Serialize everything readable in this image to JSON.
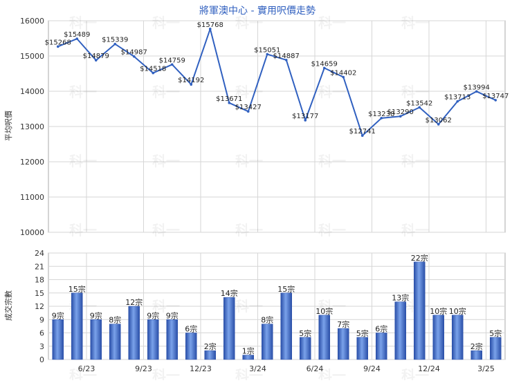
{
  "chart_data": [
    {
      "type": "line",
      "title": "將軍澳中心 - 實用呎價走勢",
      "ylabel": "平均呎價",
      "ylim": [
        10000,
        16000
      ],
      "yticks": [
        10000,
        11000,
        12000,
        13000,
        14000,
        15000,
        16000
      ],
      "xtick_labels": [
        "6/23",
        "9/23",
        "12/23",
        "3/24",
        "6/24",
        "9/24",
        "12/24",
        "3/25"
      ],
      "grid": true,
      "line_color": "#3060c0",
      "values": [
        15268,
        15489,
        14879,
        15339,
        14987,
        14518,
        14759,
        14192,
        15768,
        13671,
        13427,
        15051,
        14887,
        13177,
        14659,
        14402,
        12741,
        13238,
        13290,
        13542,
        13062,
        13713,
        13994,
        13747
      ],
      "data_labels": [
        "$15268",
        "$15489",
        "$14879",
        "$15339",
        "$14987",
        "$14518",
        "$14759",
        "$14192",
        "$15768",
        "$13671",
        "$13427",
        "$15051",
        "$14887",
        "$13177",
        "$14659",
        "$14402",
        "$12741",
        "$13238",
        "$13290",
        "$13542",
        "$13062",
        "$13713",
        "$13994",
        "$13747"
      ]
    },
    {
      "type": "bar",
      "ylabel": "成交宗數",
      "ylim": [
        0,
        24
      ],
      "yticks": [
        0,
        3,
        6,
        9,
        12,
        15,
        18,
        21,
        24
      ],
      "xtick_labels": [
        "6/23",
        "9/23",
        "12/23",
        "3/24",
        "6/24",
        "9/24",
        "12/24",
        "3/25"
      ],
      "grid": true,
      "bar_color": "#3a66c4",
      "values": [
        9,
        15,
        9,
        8,
        12,
        9,
        9,
        6,
        2,
        14,
        1,
        8,
        15,
        5,
        10,
        7,
        5,
        6,
        13,
        22,
        10,
        10,
        2,
        5
      ],
      "data_labels": [
        "9宗",
        "15宗",
        "9宗",
        "8宗",
        "12宗",
        "9宗",
        "9宗",
        "6宗",
        "2宗",
        "14宗",
        "1宗",
        "8宗",
        "15宗",
        "5宗",
        "10宗",
        "7宗",
        "5宗",
        "6宗",
        "13宗",
        "22宗",
        "10宗",
        "10宗",
        "2宗",
        "5宗"
      ]
    }
  ],
  "watermark": "科一"
}
